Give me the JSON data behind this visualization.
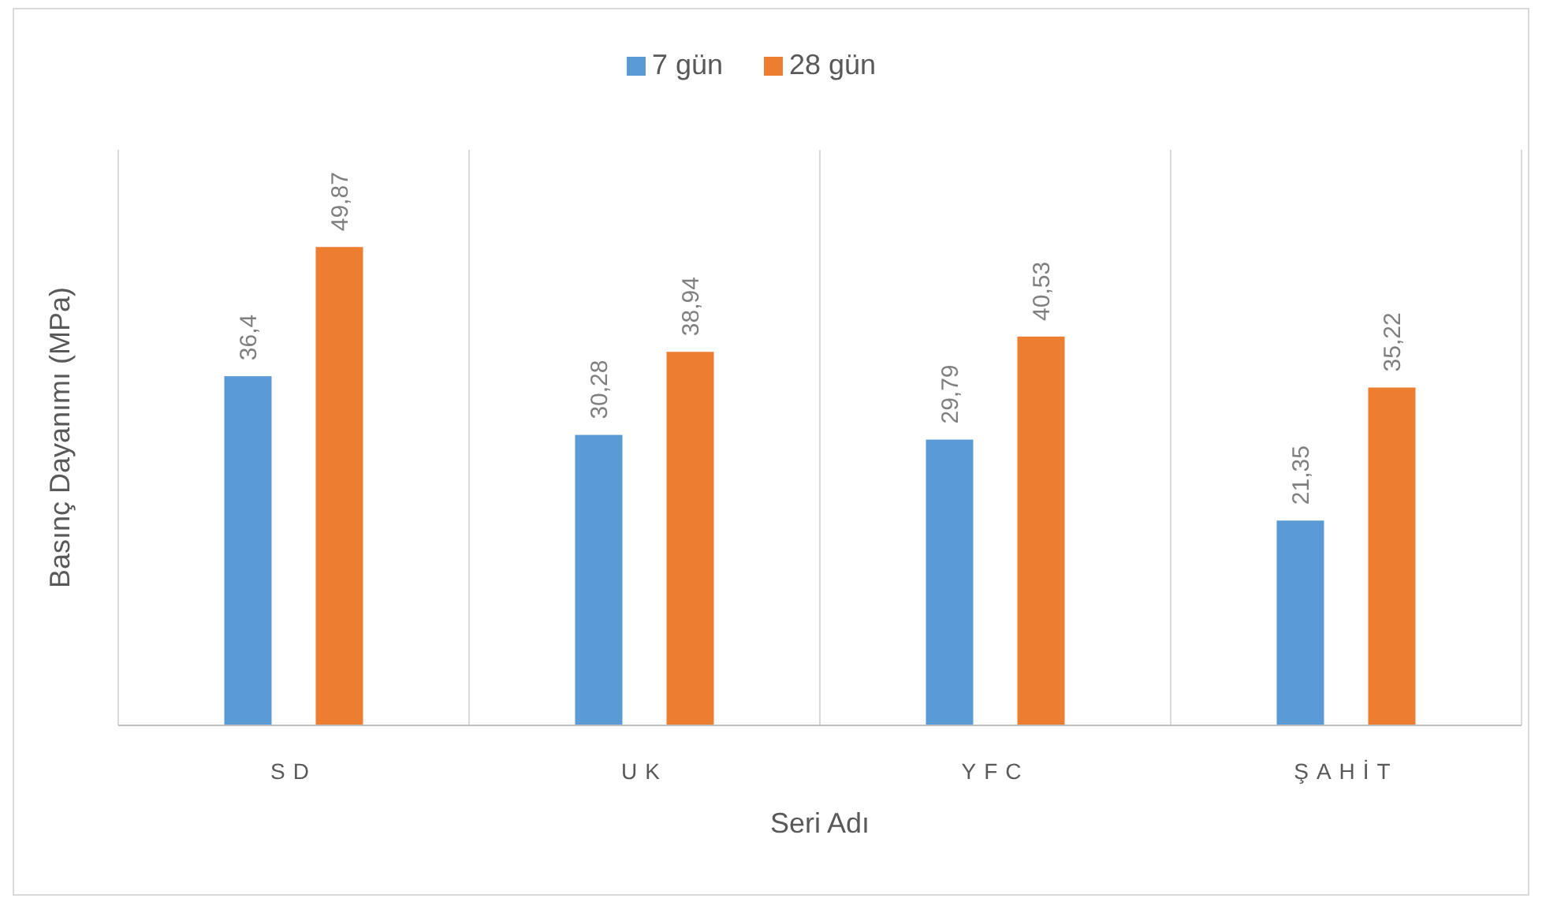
{
  "chart_data": {
    "type": "bar",
    "xlabel": "Seri Adı",
    "ylabel": "Basınç Dayanımı (MPa)",
    "categories": [
      "SD",
      "UK",
      "YFC",
      "ŞAHİT"
    ],
    "series": [
      {
        "name": "7 gün",
        "color": "#5b9bd5",
        "values": [
          36.4,
          30.28,
          29.79,
          21.35
        ],
        "value_labels": [
          "36,4",
          "30,28",
          "29,79",
          "21,35"
        ]
      },
      {
        "name": "28 gün",
        "color": "#ed7d31",
        "values": [
          49.87,
          38.94,
          40.53,
          35.22
        ],
        "value_labels": [
          "49,87",
          "38,94",
          "40,53",
          "35,22"
        ]
      }
    ],
    "ylim": [
      0,
      60
    ],
    "tick_labels": "x",
    "grid": "x",
    "legend": "top"
  }
}
